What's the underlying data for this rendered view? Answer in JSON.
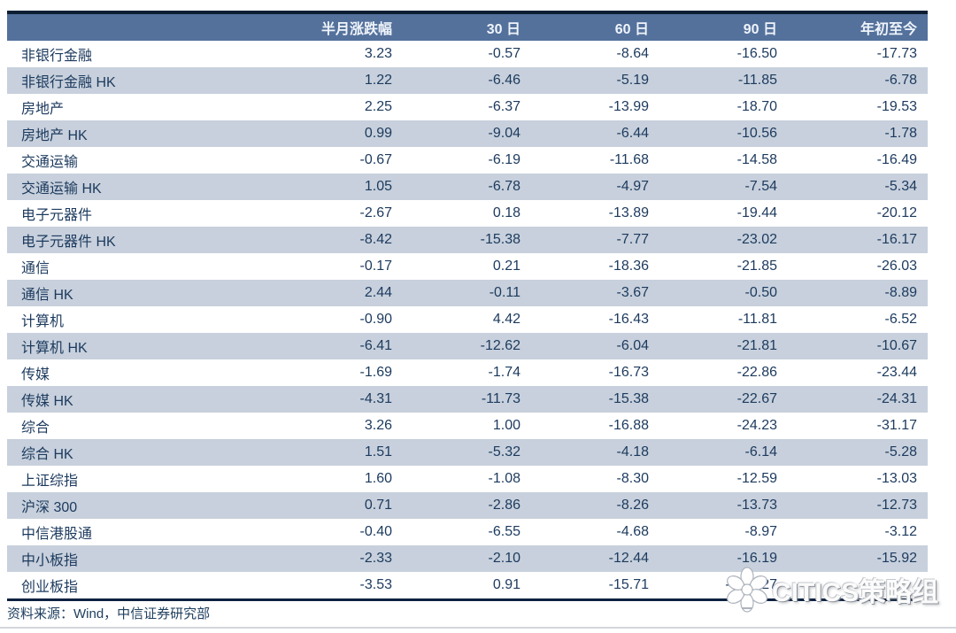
{
  "chart_data": {
    "type": "table",
    "columns": [
      "",
      "半月涨跌幅",
      "30 日",
      "60 日",
      "90 日",
      "年初至今"
    ],
    "rows": [
      {
        "label": "非银行金融",
        "values": [
          "3.23",
          "-0.57",
          "-8.64",
          "-16.50",
          "-17.73"
        ]
      },
      {
        "label": "非银行金融 HK",
        "values": [
          "1.22",
          "-6.46",
          "-5.19",
          "-11.85",
          "-6.78"
        ]
      },
      {
        "label": "房地产",
        "values": [
          "2.25",
          "-6.37",
          "-13.99",
          "-18.70",
          "-19.53"
        ]
      },
      {
        "label": "房地产 HK",
        "values": [
          "0.99",
          "-9.04",
          "-6.44",
          "-10.56",
          "-1.78"
        ]
      },
      {
        "label": "交通运输",
        "values": [
          "-0.67",
          "-6.19",
          "-11.68",
          "-14.58",
          "-16.49"
        ]
      },
      {
        "label": "交通运输 HK",
        "values": [
          "1.05",
          "-6.78",
          "-4.97",
          "-7.54",
          "-5.34"
        ]
      },
      {
        "label": "电子元器件",
        "values": [
          "-2.67",
          "0.18",
          "-13.89",
          "-19.44",
          "-20.12"
        ]
      },
      {
        "label": "电子元器件 HK",
        "values": [
          "-8.42",
          "-15.38",
          "-7.77",
          "-23.02",
          "-16.17"
        ]
      },
      {
        "label": "通信",
        "values": [
          "-0.17",
          "0.21",
          "-18.36",
          "-21.85",
          "-26.03"
        ]
      },
      {
        "label": "通信 HK",
        "values": [
          "2.44",
          "-0.11",
          "-3.67",
          "-0.50",
          "-8.89"
        ]
      },
      {
        "label": "计算机",
        "values": [
          "-0.90",
          "4.42",
          "-16.43",
          "-11.81",
          "-6.52"
        ]
      },
      {
        "label": "计算机 HK",
        "values": [
          "-6.41",
          "-12.62",
          "-6.04",
          "-21.81",
          "-10.67"
        ]
      },
      {
        "label": "传媒",
        "values": [
          "-1.69",
          "-1.74",
          "-16.73",
          "-22.86",
          "-23.44"
        ]
      },
      {
        "label": "传媒 HK",
        "values": [
          "-4.31",
          "-11.73",
          "-15.38",
          "-22.67",
          "-24.31"
        ]
      },
      {
        "label": "综合",
        "values": [
          "3.26",
          "1.00",
          "-16.88",
          "-24.23",
          "-31.17"
        ]
      },
      {
        "label": "综合 HK",
        "values": [
          "1.51",
          "-5.32",
          "-4.18",
          "-6.14",
          "-5.28"
        ]
      },
      {
        "label": "上证综指",
        "values": [
          "1.60",
          "-1.08",
          "-8.30",
          "-12.59",
          "-13.03"
        ]
      },
      {
        "label": "沪深 300",
        "values": [
          "0.71",
          "-2.86",
          "-8.26",
          "-13.73",
          "-12.73"
        ]
      },
      {
        "label": "中信港股通",
        "values": [
          "-0.40",
          "-6.55",
          "-4.68",
          "-8.97",
          "-3.12"
        ]
      },
      {
        "label": "中小板指",
        "values": [
          "-2.33",
          "-2.10",
          "-12.44",
          "-16.19",
          "-15.92"
        ]
      },
      {
        "label": "创业板指",
        "values": [
          "-3.53",
          "0.91",
          "-15.71",
          "-        27",
          ""
        ]
      }
    ],
    "source": "资料来源：Wind，中信证券研究部"
  },
  "watermark": {
    "text": "CITICS策略组"
  },
  "colors": {
    "header_bg": "#54719C",
    "header_text": "#EFF4FA",
    "stripe_bg": "#C7D0DC",
    "body_text": "#1C3A5E",
    "border": "#0D1D33"
  }
}
